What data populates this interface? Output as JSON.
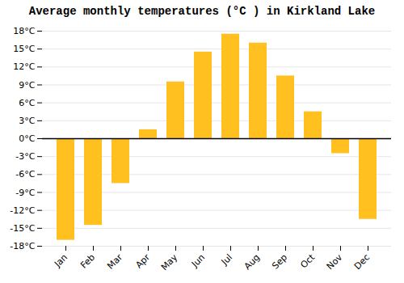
{
  "chart_data": {
    "type": "bar",
    "title": "Average monthly temperatures (°C ) in Kirkland Lake",
    "categories": [
      "Jan",
      "Feb",
      "Mar",
      "Apr",
      "May",
      "Jun",
      "Jul",
      "Aug",
      "Sep",
      "Oct",
      "Nov",
      "Dec"
    ],
    "values": [
      -17,
      -14.5,
      -7.5,
      1.5,
      9.5,
      14.5,
      17.5,
      16,
      10.5,
      4.5,
      -2.5,
      -13.5
    ],
    "color": "#FFC020",
    "ylim": [
      -18,
      18
    ],
    "yticks": [
      {
        "value": -18,
        "label": "-18°C"
      },
      {
        "value": -15,
        "label": "-15°C"
      },
      {
        "value": -12,
        "label": "-12°C"
      },
      {
        "value": -9,
        "label": "-9°C"
      },
      {
        "value": -6,
        "label": "-6°C"
      },
      {
        "value": -3,
        "label": "-3°C"
      },
      {
        "value": 0,
        "label": "0°C"
      },
      {
        "value": 3,
        "label": "3°C"
      },
      {
        "value": 6,
        "label": "6°C"
      },
      {
        "value": 9,
        "label": "9°C"
      },
      {
        "value": 12,
        "label": "12°C"
      },
      {
        "value": 15,
        "label": "15°C"
      },
      {
        "value": 18,
        "label": "18°C"
      }
    ],
    "grid": true
  }
}
